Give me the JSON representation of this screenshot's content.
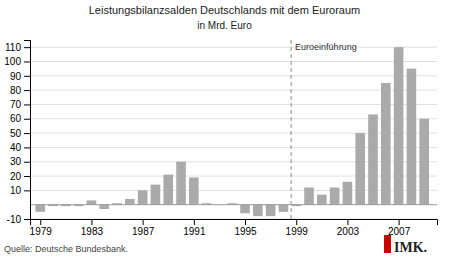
{
  "chart_data": {
    "type": "bar",
    "title": "Leistungsbilanzsalden Deutschlands mit dem Euroraum",
    "subtitle": "in Mrd. Euro",
    "x": [
      1979,
      1980,
      1981,
      1982,
      1983,
      1984,
      1985,
      1986,
      1987,
      1988,
      1989,
      1990,
      1991,
      1992,
      1993,
      1994,
      1995,
      1996,
      1997,
      1998,
      1999,
      2000,
      2001,
      2002,
      2003,
      2004,
      2005,
      2006,
      2007,
      2008,
      2009
    ],
    "values": [
      -5,
      -1,
      -1,
      -1,
      3,
      -3,
      1,
      4,
      10,
      14,
      21,
      30,
      19,
      1,
      0,
      1,
      -6,
      -8,
      -8,
      -5,
      -1,
      12,
      7,
      12,
      16,
      50,
      63,
      85,
      110,
      95,
      60
    ],
    "color": "#aaaaaa",
    "xlim": [
      1978.2,
      2010.0
    ],
    "xticks": [
      1979,
      1983,
      1987,
      1991,
      1995,
      1999,
      2003,
      2007
    ],
    "ylim": [
      -10,
      115
    ],
    "yticks": [
      -10,
      10,
      20,
      30,
      40,
      50,
      60,
      70,
      80,
      90,
      100,
      110
    ],
    "grid": true,
    "annotations": [
      {
        "text": "Euroeinführung",
        "x": 1998.6
      }
    ],
    "source": "Quelle: Deutsche Bundesbank.",
    "logo": "IMK."
  }
}
